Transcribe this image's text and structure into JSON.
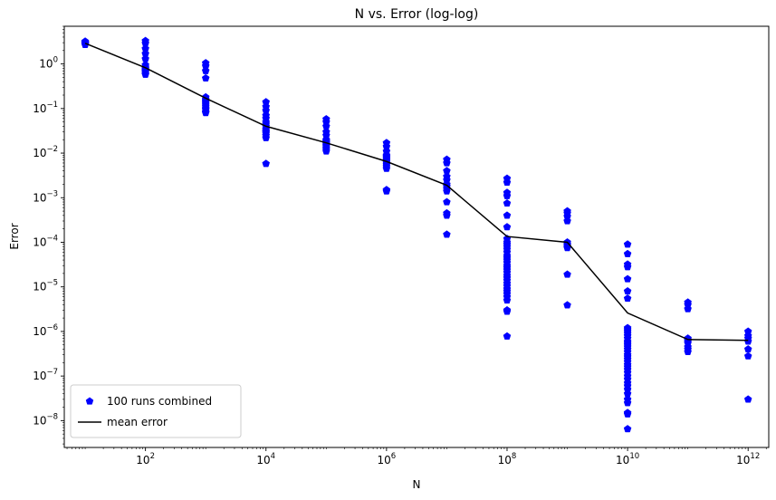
{
  "chart_data": {
    "type": "scatter",
    "title": "N vs. Error (log-log)",
    "xlabel": "N",
    "ylabel": "Error",
    "xscale": "log",
    "yscale": "log",
    "xlim": [
      4.5,
      2200000000000.0
    ],
    "ylim": [
      2.5e-09,
      7.0
    ],
    "grid": false,
    "legend_position": "lower-left",
    "x_ticks": [
      {
        "value": 100.0,
        "base": "10",
        "exp": "2"
      },
      {
        "value": 10000.0,
        "base": "10",
        "exp": "4"
      },
      {
        "value": 1000000.0,
        "base": "10",
        "exp": "6"
      },
      {
        "value": 100000000.0,
        "base": "10",
        "exp": "8"
      },
      {
        "value": 10000000000.0,
        "base": "10",
        "exp": "10"
      },
      {
        "value": 1000000000000.0,
        "base": "10",
        "exp": "12"
      }
    ],
    "y_ticks": [
      {
        "value": 1.0,
        "base": "10",
        "exp": "0"
      },
      {
        "value": 0.1,
        "base": "10",
        "exp": "−1"
      },
      {
        "value": 0.01,
        "base": "10",
        "exp": "−2"
      },
      {
        "value": 0.001,
        "base": "10",
        "exp": "−3"
      },
      {
        "value": 0.0001,
        "base": "10",
        "exp": "−4"
      },
      {
        "value": 1e-05,
        "base": "10",
        "exp": "−5"
      },
      {
        "value": 1e-06,
        "base": "10",
        "exp": "−6"
      },
      {
        "value": 1e-07,
        "base": "10",
        "exp": "−7"
      },
      {
        "value": 1e-08,
        "base": "10",
        "exp": "−8"
      }
    ],
    "series": [
      {
        "name": "100 runs combined",
        "kind": "scatter",
        "marker": "pentagon",
        "color": "#0000ff",
        "points": [
          {
            "x": 10.0,
            "y": [
              3.2,
              3.1,
              3.0,
              2.9,
              2.8,
              2.75,
              2.7,
              3.05,
              2.95,
              2.85
            ]
          },
          {
            "x": 100.0,
            "y": [
              3.3,
              2.9,
              2.2,
              1.7,
              1.3,
              0.95,
              0.85,
              0.8,
              0.75,
              0.72,
              0.7,
              0.68,
              0.65,
              0.6,
              0.58
            ]
          },
          {
            "x": 1000.0,
            "y": [
              1.05,
              0.9,
              0.7,
              0.48,
              0.18,
              0.16,
              0.15,
              0.14,
              0.13,
              0.12,
              0.11,
              0.1,
              0.095,
              0.085,
              0.08
            ]
          },
          {
            "x": 10000.0,
            "y": [
              0.14,
              0.11,
              0.09,
              0.07,
              0.06,
              0.05,
              0.045,
              0.04,
              0.035,
              0.032,
              0.03,
              0.028,
              0.025,
              0.022,
              0.0058
            ]
          },
          {
            "x": 100000.0,
            "y": [
              0.058,
              0.05,
              0.04,
              0.03,
              0.025,
              0.02,
              0.019,
              0.018,
              0.017,
              0.016,
              0.015,
              0.014,
              0.013,
              0.012,
              0.011
            ]
          },
          {
            "x": 1000000.0,
            "y": [
              0.017,
              0.014,
              0.011,
              0.009,
              0.0085,
              0.008,
              0.0075,
              0.007,
              0.0065,
              0.006,
              0.0055,
              0.005,
              0.0045,
              0.0015,
              0.0014
            ]
          },
          {
            "x": 10000000.0,
            "y": [
              0.0072,
              0.006,
              0.004,
              0.003,
              0.0025,
              0.002,
              0.0018,
              0.0016,
              0.0014,
              0.0008,
              0.00045,
              0.0004,
              0.00015
            ]
          },
          {
            "x": 100000000.0,
            "y": [
              0.0027,
              0.0022,
              0.0013,
              0.0011,
              0.00075,
              0.0004,
              0.00022,
              0.00012,
              0.0001,
              9e-05,
              8e-05,
              7e-05,
              6e-05,
              5e-05,
              4.5e-05,
              4e-05,
              3.5e-05,
              3e-05,
              2.7e-05,
              2.4e-05,
              2.1e-05,
              1.8e-05,
              1.6e-05,
              1.4e-05,
              1.2e-05,
              1.05e-05,
              9e-06,
              8e-06,
              7e-06,
              6e-06,
              5e-06,
              3e-06,
              2.8e-06,
              7.8e-07
            ]
          },
          {
            "x": 1000000000.0,
            "y": [
              0.0005,
              0.00045,
              0.00038,
              0.0003,
              0.0001,
              9e-05,
              8.5e-05,
              8e-05,
              7.5e-05,
              1.9e-05,
              3.9e-06
            ]
          },
          {
            "x": 10000000000.0,
            "y": [
              9e-05,
              5.5e-05,
              3.2e-05,
              2.8e-05,
              1.5e-05,
              8e-06,
              5.5e-06,
              1.2e-06,
              1.1e-06,
              1e-06,
              9e-07,
              8e-07,
              7e-07,
              6e-07,
              5.5e-07,
              5e-07,
              4.5e-07,
              4e-07,
              3.5e-07,
              3e-07,
              2.7e-07,
              2.4e-07,
              2.1e-07,
              1.8e-07,
              1.6e-07,
              1.4e-07,
              1.2e-07,
              1e-07,
              8.5e-08,
              7e-08,
              6e-08,
              5e-08,
              4e-08,
              3e-08,
              2.5e-08,
              1.5e-08,
              1.4e-08,
              6.5e-09
            ]
          },
          {
            "x": 100000000000.0,
            "y": [
              4.5e-06,
              4e-06,
              3.2e-06,
              7e-07,
              6.5e-07,
              6e-07,
              5.5e-07,
              4.5e-07,
              4e-07,
              3.5e-07
            ]
          },
          {
            "x": 1000000000000.0,
            "y": [
              1e-06,
              8e-07,
              7e-07,
              6e-07,
              4e-07,
              2.8e-07,
              3e-08
            ]
          }
        ]
      },
      {
        "name": "mean error",
        "kind": "line",
        "color": "#000000",
        "x": [
          10.0,
          100.0,
          1000.0,
          10000.0,
          100000.0,
          1000000.0,
          10000000.0,
          100000000.0,
          1000000000.0,
          10000000000.0,
          100000000000.0,
          1000000000000.0
        ],
        "y": [
          2.9,
          0.82,
          0.17,
          0.04,
          0.017,
          0.0065,
          0.0019,
          0.000135,
          0.0001,
          2.6e-06,
          6.6e-07,
          6.3e-07
        ]
      }
    ]
  }
}
